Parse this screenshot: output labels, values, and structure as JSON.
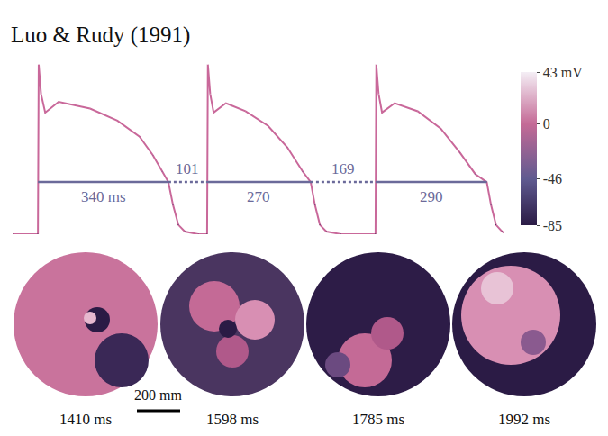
{
  "chart_data": {
    "type": "line",
    "title": "Luo & Rudy (1991)",
    "x": [
      -66,
      -1,
      0,
      2,
      8,
      19,
      54,
      136,
      207,
      265,
      300,
      324,
      340,
      352,
      366,
      383,
      418,
      440,
      441,
      443,
      449,
      458,
      490,
      541,
      600,
      650,
      690,
      711,
      722,
      735,
      752,
      790,
      879,
      880,
      882,
      888,
      897,
      930,
      990,
      1050,
      1100,
      1140,
      1170,
      1181,
      1194,
      1210,
      1216
    ],
    "values": [
      -85,
      -85,
      -85,
      42,
      20,
      6,
      14,
      9,
      0,
      -12,
      -26,
      -38,
      -46,
      -63,
      -78,
      -83,
      -85,
      -85,
      -85,
      42,
      20,
      6,
      13,
      7,
      -4,
      -20,
      -38,
      -46,
      -63,
      -78,
      -83,
      -85,
      -85,
      -85,
      42,
      20,
      6,
      13,
      7,
      -6,
      -24,
      -40,
      -46,
      -63,
      -78,
      -83,
      -84
    ],
    "color": "#c9689a",
    "xlim": [
      -66,
      1216
    ],
    "ylim": [
      -85,
      43
    ],
    "tick_labels": false,
    "threshold": -46,
    "intervals": [
      {
        "kind": "apd",
        "start": 0,
        "value": 340,
        "label": "340 ms",
        "line_style": "solid"
      },
      {
        "kind": "di",
        "start": 340,
        "value": 101,
        "label": "101",
        "line_style": "dot"
      },
      {
        "kind": "apd",
        "start": 441,
        "value": 270,
        "label": "270",
        "line_style": "solid"
      },
      {
        "kind": "di",
        "start": 711,
        "value": 169,
        "label": "169",
        "line_style": "dot"
      },
      {
        "kind": "apd",
        "start": 880,
        "value": 290,
        "label": "290",
        "line_style": "solid"
      }
    ],
    "colorbar": {
      "range": [
        -85,
        43
      ],
      "ticks": [
        {
          "value": 43,
          "label": "43 mV"
        },
        0,
        -46,
        -85
      ]
    },
    "snapshots": {
      "labels": [
        "1410 ms",
        "1598 ms",
        "1785 ms",
        "1992 ms"
      ],
      "scale_bar": "200 mm"
    }
  }
}
